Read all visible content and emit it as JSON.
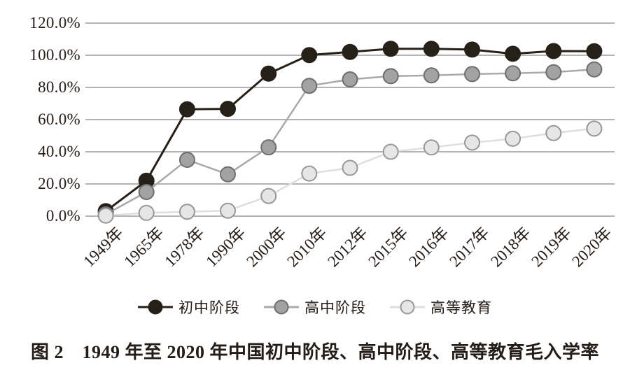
{
  "figure": {
    "caption": "图 2　1949 年至 2020 年中国初中阶段、高中阶段、高等教育毛入学率"
  },
  "chart_data": {
    "type": "line",
    "title": "图 2　1949 年至 2020 年中国初中阶段、高中阶段、高等教育毛入学率",
    "xlabel": "",
    "ylabel": "",
    "categories": [
      "1949年",
      "1965年",
      "1978年",
      "1990年",
      "2000年",
      "2010年",
      "2012年",
      "2015年",
      "2016年",
      "2017年",
      "2018年",
      "2019年",
      "2020年"
    ],
    "series": [
      {
        "name": "初中阶段",
        "values": [
          3.1,
          22.0,
          66.4,
          66.7,
          88.6,
          100.1,
          102.1,
          104.0,
          104.0,
          103.5,
          100.9,
          102.6,
          102.5
        ],
        "line_color": "#272019",
        "marker_fill": "#272019",
        "marker_stroke": "#272019"
      },
      {
        "name": "高中阶段",
        "values": [
          1.1,
          15.0,
          35.0,
          26.0,
          42.8,
          81.0,
          85.0,
          87.0,
          87.5,
          88.3,
          88.8,
          89.5,
          91.2
        ],
        "line_color": "#a9a9a9",
        "marker_fill": "#a2a2a2",
        "marker_stroke": "#6e6e6e"
      },
      {
        "name": "高等教育",
        "values": [
          0.3,
          2.0,
          2.7,
          3.4,
          12.5,
          26.5,
          30.0,
          40.0,
          42.7,
          45.7,
          48.1,
          51.6,
          54.4
        ],
        "line_color": "#dedede",
        "marker_fill": "#e6e6e6",
        "marker_stroke": "#979797"
      }
    ],
    "y_ticks": [
      "120.0%",
      "100.0%",
      "80.0%",
      "60.0%",
      "40.0%",
      "20.0%",
      "0.0%"
    ],
    "ylim": [
      0,
      120
    ],
    "y_tick_step": 20,
    "grid": true,
    "gridline_color": "#878787",
    "legend_position": "bottom"
  }
}
